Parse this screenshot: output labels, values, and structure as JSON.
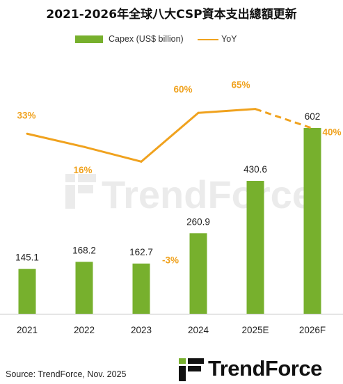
{
  "title": "2021-2026年全球八大CSP資本支出總額更新",
  "legend": {
    "bar_label": "Capex (US$ billion)",
    "line_label": "YoY"
  },
  "colors": {
    "bar": "#77b02d",
    "line": "#f0a21e",
    "axis": "#bfbfbf",
    "watermark": "#ebebeb"
  },
  "watermark": "TrendForce",
  "source": "Source: TrendForce, Nov. 2025",
  "logo": {
    "text": "TrendForce",
    "icon": "trendforce-logo-icon"
  },
  "chart_data": {
    "type": "bar",
    "categories": [
      "2021",
      "2022",
      "2023",
      "2024",
      "2025E",
      "2026F"
    ],
    "series": [
      {
        "name": "Capex (US$ billion)",
        "type": "bar",
        "values": [
          145.1,
          168.2,
          162.7,
          260.9,
          430.6,
          602
        ],
        "labels": [
          "145.1",
          "168.2",
          "162.7",
          "260.9",
          "430.6",
          "602"
        ]
      },
      {
        "name": "YoY",
        "type": "line",
        "values": [
          33,
          16,
          -3,
          60,
          65,
          40
        ],
        "labels": [
          "33%",
          "16%",
          "-3%",
          "60%",
          "65%",
          "40%"
        ],
        "dashed_from_index": 4
      }
    ],
    "xlabel": "",
    "ylabel": "",
    "grid": false
  }
}
